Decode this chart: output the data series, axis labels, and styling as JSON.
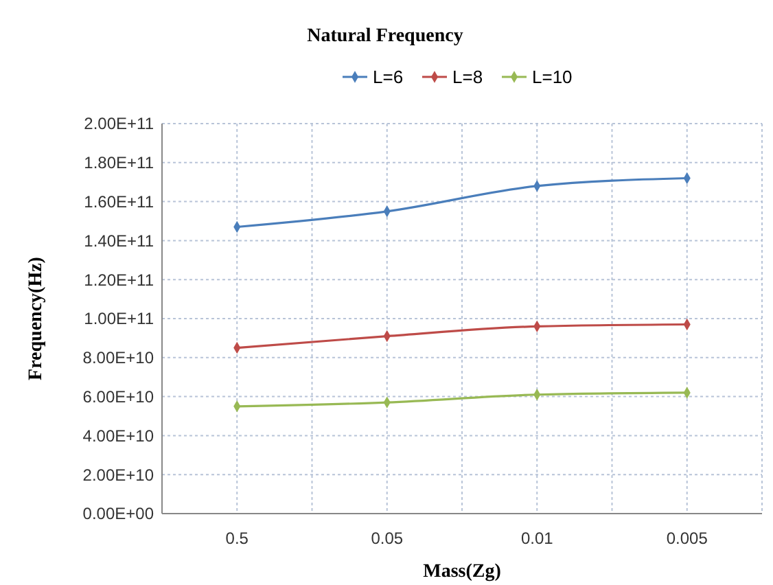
{
  "chart_data": {
    "type": "line",
    "title": "Natural Frequency",
    "xlabel": "Mass(Zg)",
    "ylabel": "Frequency(Hz)",
    "categories": [
      "0.5",
      "0.05",
      "0.01",
      "0.005"
    ],
    "series": [
      {
        "name": "L=6",
        "color": "#4a7ebb",
        "values": [
          147000000000,
          155000000000,
          168000000000,
          172000000000
        ]
      },
      {
        "name": "L=8",
        "color": "#be4b48",
        "values": [
          85000000000,
          91000000000,
          96000000000,
          97000000000
        ]
      },
      {
        "name": "L=10",
        "color": "#98b954",
        "values": [
          55000000000,
          57000000000,
          61000000000,
          62000000000
        ]
      }
    ],
    "ylim": [
      0,
      200000000000
    ],
    "yticks": [
      {
        "value": 0,
        "label": "0.00E+00"
      },
      {
        "value": 20000000000,
        "label": "2.00E+10"
      },
      {
        "value": 40000000000,
        "label": "4.00E+10"
      },
      {
        "value": 60000000000,
        "label": "6.00E+10"
      },
      {
        "value": 80000000000,
        "label": "8.00E+10"
      },
      {
        "value": 100000000000,
        "label": "1.00E+11"
      },
      {
        "value": 120000000000,
        "label": "1.20E+11"
      },
      {
        "value": 140000000000,
        "label": "1.40E+11"
      },
      {
        "value": 160000000000,
        "label": "1.60E+11"
      },
      {
        "value": 180000000000,
        "label": "1.80E+11"
      },
      {
        "value": 200000000000,
        "label": "2.00E+11"
      }
    ],
    "grid": true,
    "legend": "top",
    "marker": "diamond",
    "line_style": "solid"
  }
}
